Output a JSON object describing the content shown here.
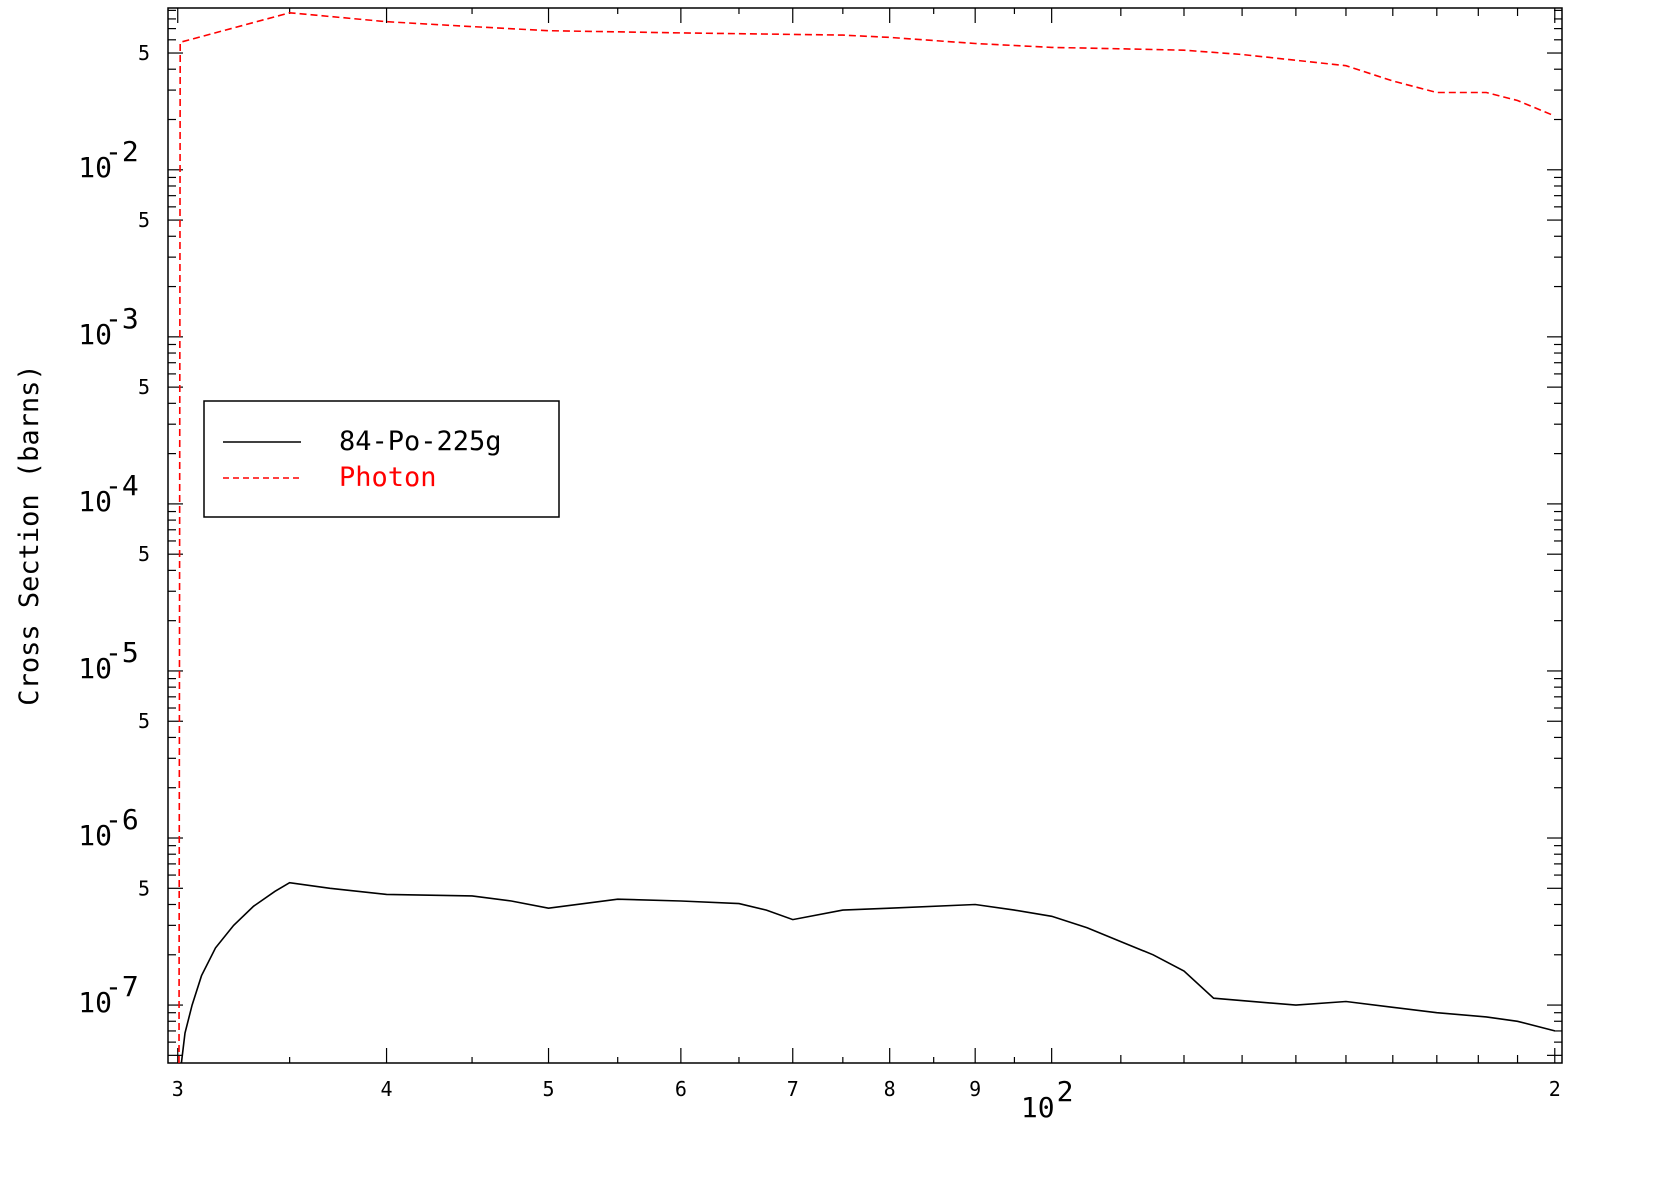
{
  "chart_data": {
    "type": "line",
    "xscale": "log",
    "yscale": "log",
    "xlim": [
      29.6,
      202
    ],
    "ylim": [
      4.5e-08,
      0.093
    ],
    "xlabel": "",
    "ylabel": "Cross Section (barns)",
    "x_tick_labels": [
      {
        "value": 30,
        "label": "3"
      },
      {
        "value": 40,
        "label": "4"
      },
      {
        "value": 50,
        "label": "5"
      },
      {
        "value": 60,
        "label": "6"
      },
      {
        "value": 70,
        "label": "7"
      },
      {
        "value": 80,
        "label": "8"
      },
      {
        "value": 90,
        "label": "9"
      },
      {
        "value": 200,
        "label": "2"
      }
    ],
    "x_decade_label": {
      "value": 100,
      "base": "10",
      "exp": "2"
    },
    "y_decade_labels": [
      {
        "value": 0.01,
        "base": "10",
        "exp": "-2"
      },
      {
        "value": 0.001,
        "base": "10",
        "exp": "-3"
      },
      {
        "value": 0.0001,
        "base": "10",
        "exp": "-4"
      },
      {
        "value": 1e-05,
        "base": "10",
        "exp": "-5"
      },
      {
        "value": 1e-06,
        "base": "10",
        "exp": "-6"
      },
      {
        "value": 1e-07,
        "base": "10",
        "exp": "-7"
      }
    ],
    "y_minor_labels": [
      {
        "value": 0.05,
        "label": "5"
      },
      {
        "value": 0.005,
        "label": "5"
      },
      {
        "value": 0.0005,
        "label": "5"
      },
      {
        "value": 5e-05,
        "label": "5"
      },
      {
        "value": 5e-06,
        "label": "5"
      },
      {
        "value": 5e-07,
        "label": "5"
      }
    ],
    "legend": {
      "placement": "left-center"
    },
    "series": [
      {
        "name": "84-Po-225g",
        "color": "#000000",
        "dash": "solid",
        "points": [
          [
            30.15,
            4.5e-08
          ],
          [
            30.3,
            6.8e-08
          ],
          [
            30.6,
            1e-07
          ],
          [
            31.0,
            1.5e-07
          ],
          [
            31.6,
            2.2e-07
          ],
          [
            32.4,
            3e-07
          ],
          [
            33.3,
            3.9e-07
          ],
          [
            34.3,
            4.8e-07
          ],
          [
            35.0,
            5.4e-07
          ],
          [
            37.0,
            5e-07
          ],
          [
            40.0,
            4.6e-07
          ],
          [
            45.0,
            4.5e-07
          ],
          [
            47.5,
            4.2e-07
          ],
          [
            50.0,
            3.8e-07
          ],
          [
            55.0,
            4.3e-07
          ],
          [
            60.0,
            4.2e-07
          ],
          [
            65.0,
            4.05e-07
          ],
          [
            67.5,
            3.7e-07
          ],
          [
            70.0,
            3.25e-07
          ],
          [
            75.0,
            3.7e-07
          ],
          [
            80.0,
            3.8e-07
          ],
          [
            90.0,
            4e-07
          ],
          [
            95.0,
            3.7e-07
          ],
          [
            100.0,
            3.4e-07
          ],
          [
            105.0,
            2.9e-07
          ],
          [
            110.0,
            2.4e-07
          ],
          [
            115.0,
            2e-07
          ],
          [
            120.0,
            1.6e-07
          ],
          [
            125.0,
            1.1e-07
          ],
          [
            140.0,
            1e-07
          ],
          [
            150.0,
            1.05e-07
          ],
          [
            160.0,
            9.7e-08
          ],
          [
            170.0,
            9e-08
          ],
          [
            182.0,
            8.5e-08
          ],
          [
            190.0,
            8e-08
          ],
          [
            200.0,
            7e-08
          ]
        ]
      },
      {
        "name": "Photon",
        "color": "#ff0000",
        "dash": "dashed",
        "points": [
          [
            30.05,
            4.5e-08
          ],
          [
            30.1,
            0.058
          ],
          [
            35.0,
            0.087
          ],
          [
            40.0,
            0.077
          ],
          [
            45.0,
            0.072
          ],
          [
            50.0,
            0.068
          ],
          [
            60.0,
            0.066
          ],
          [
            75.0,
            0.064
          ],
          [
            80.0,
            0.062
          ],
          [
            90.0,
            0.057
          ],
          [
            100.0,
            0.054
          ],
          [
            110.0,
            0.053
          ],
          [
            120.0,
            0.052
          ],
          [
            130.0,
            0.049
          ],
          [
            150.0,
            0.042
          ],
          [
            160.0,
            0.034
          ],
          [
            170.0,
            0.029
          ],
          [
            182.0,
            0.029
          ],
          [
            190.0,
            0.026
          ],
          [
            200.0,
            0.021
          ]
        ]
      }
    ]
  }
}
